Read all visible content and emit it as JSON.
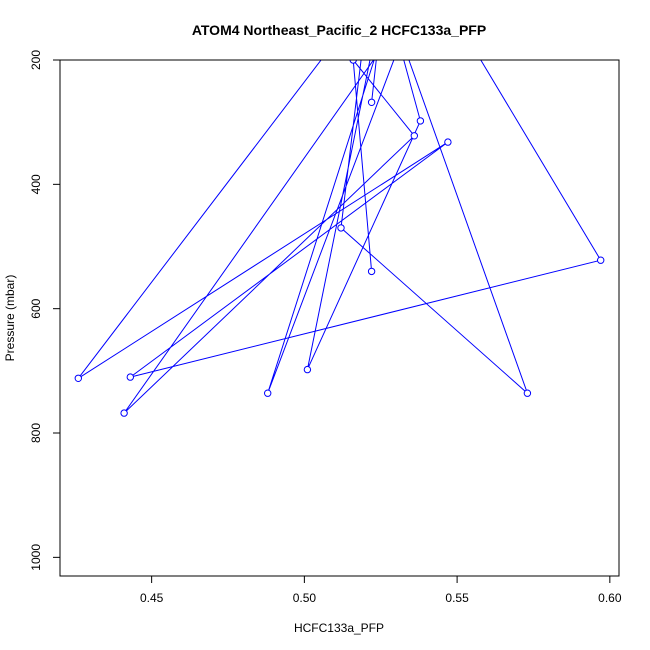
{
  "chart_data": {
    "type": "line",
    "title": "ATOM4 Northeast_Pacific_2 HCFC133a_PFP",
    "xlabel": "HCFC133a_PFP",
    "ylabel": "Pressure (mbar)",
    "xlim": [
      0.42,
      0.603
    ],
    "ylim": [
      1030,
      200
    ],
    "x_ticks": [
      0.45,
      0.5,
      0.55,
      0.6
    ],
    "x_tick_labels": [
      "0.45",
      "0.50",
      "0.55",
      "0.60"
    ],
    "y_ticks": [
      200,
      400,
      600,
      800,
      1000
    ],
    "y_tick_labels": [
      "200",
      "400",
      "600",
      "800",
      "1000"
    ],
    "grid": false,
    "line_color": "#0000ff",
    "series": [
      {
        "x": [
          0.522,
          0.516,
          0.536,
          0.441,
          0.537,
          0.488,
          0.53,
          0.548,
          0.597,
          0.443,
          0.547,
          0.426,
          0.521,
          0.512,
          0.573,
          0.527,
          0.538,
          0.501,
          0.526,
          0.522
        ],
        "y": [
          540,
          200,
          322,
          768,
          100,
          736,
          90,
          120,
          522,
          710,
          332,
          712,
          100,
          470,
          736,
          100,
          298,
          698,
          90,
          268
        ]
      }
    ]
  }
}
